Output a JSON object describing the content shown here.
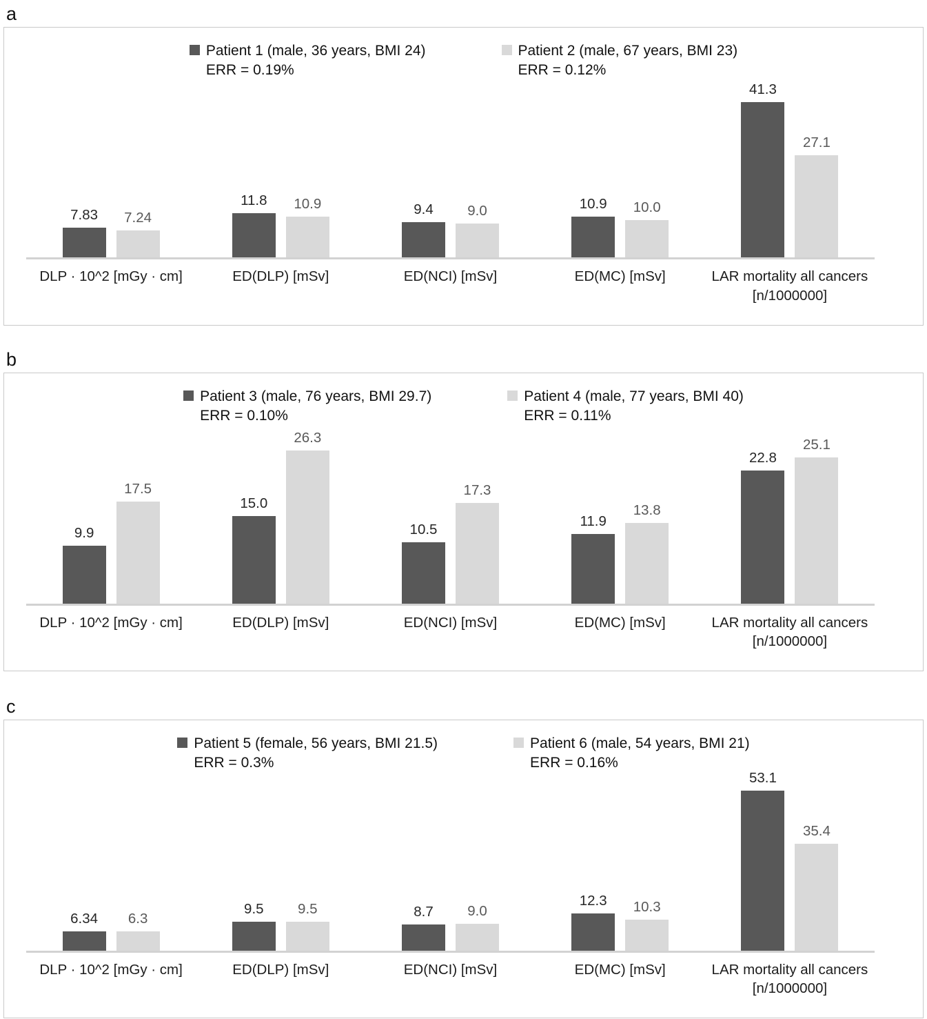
{
  "chart_data": [
    {
      "type": "bar",
      "panel_label": "a",
      "categories": [
        "DLP · 10^2 [mGy · cm]",
        "ED(DLP) [mSv]",
        "ED(NCI) [mSv]",
        "ED(MC) [mSv]",
        "LAR mortality all cancers [n/1000000]"
      ],
      "series": [
        {
          "name": "Patient 1 (male, 36 years, BMI 24)",
          "err_label": "ERR = 0.19%",
          "values": [
            7.83,
            11.8,
            9.4,
            10.9,
            41.3
          ],
          "value_labels": [
            "7.83",
            "11.8",
            "9.4",
            "10.9",
            "41.3"
          ],
          "color": "#585858",
          "label_color": "#262626"
        },
        {
          "name": "Patient 2 (male, 67 years, BMI 23)",
          "err_label": "ERR = 0.12%",
          "values": [
            7.24,
            10.9,
            9.0,
            10.0,
            27.1
          ],
          "value_labels": [
            "7.24",
            "10.9",
            "9.0",
            "10.0",
            "27.1"
          ],
          "color": "#d9d9d9",
          "label_color": "#595959"
        }
      ],
      "ylim": [
        0,
        45
      ],
      "grid": false,
      "y_axis_visible": false,
      "legend_position": "top",
      "axis_color": "#d2d2d2"
    },
    {
      "type": "bar",
      "panel_label": "b",
      "categories": [
        "DLP · 10^2 [mGy · cm]",
        "ED(DLP) [mSv]",
        "ED(NCI) [mSv]",
        "ED(MC) [mSv]",
        "LAR mortality all cancers [n/1000000]"
      ],
      "series": [
        {
          "name": "Patient 3 (male, 76 years, BMI 29.7)",
          "err_label": "ERR = 0.10%",
          "values": [
            9.9,
            15.0,
            10.5,
            11.9,
            22.8
          ],
          "value_labels": [
            "9.9",
            "15.0",
            "10.5",
            "11.9",
            "22.8"
          ],
          "color": "#585858",
          "label_color": "#262626"
        },
        {
          "name": "Patient 4 (male, 77 years, BMI 40)",
          "err_label": "ERR = 0.11%",
          "values": [
            17.5,
            26.3,
            17.3,
            13.8,
            25.1
          ],
          "value_labels": [
            "17.5",
            "26.3",
            "17.3",
            "13.8",
            "25.1"
          ],
          "color": "#d9d9d9",
          "label_color": "#595959"
        }
      ],
      "ylim": [
        0,
        29
      ],
      "grid": false,
      "y_axis_visible": false,
      "legend_position": "top",
      "axis_color": "#d2d2d2"
    },
    {
      "type": "bar",
      "panel_label": "c",
      "categories": [
        "DLP · 10^2 [mGy · cm]",
        "ED(DLP) [mSv]",
        "ED(NCI) [mSv]",
        "ED(MC) [mSv]",
        "LAR mortality all cancers [n/1000000]"
      ],
      "series": [
        {
          "name": "Patient 5 (female, 56 years, BMI 21.5)",
          "err_label": "ERR = 0.3%",
          "values": [
            6.34,
            9.5,
            8.7,
            12.3,
            53.1
          ],
          "value_labels": [
            "6.34",
            "9.5",
            "8.7",
            "12.3",
            "53.1"
          ],
          "color": "#585858",
          "label_color": "#262626"
        },
        {
          "name": "Patient 6 (male, 54 years, BMI 21)",
          "err_label": "ERR = 0.16%",
          "values": [
            6.3,
            9.5,
            9.0,
            10.3,
            35.4
          ],
          "value_labels": [
            "6.3",
            "9.5",
            "9.0",
            "10.3",
            "35.4"
          ],
          "color": "#d9d9d9",
          "label_color": "#595959"
        }
      ],
      "ylim": [
        0,
        56
      ],
      "grid": false,
      "y_axis_visible": false,
      "legend_position": "top",
      "axis_color": "#d2d2d2"
    }
  ]
}
